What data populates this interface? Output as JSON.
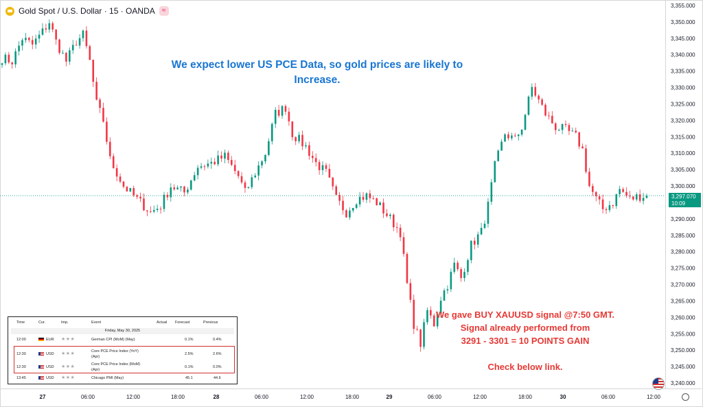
{
  "header": {
    "symbol_title": "Gold Spot / U.S. Dollar · 15 · OANDA",
    "badge": "≈"
  },
  "annotations": {
    "pce_line1": "We expect lower US PCE Data, so gold prices are likely to",
    "pce_line2": "Increase.",
    "signal_line1": "We gave BUY XAUUSD signal @7:50 GMT.",
    "signal_line2": "Signal already performed from",
    "signal_line3": "3291 - 3301 = 10 POINTS GAIN",
    "signal_line4": "Check below link."
  },
  "last_price": {
    "value": "3,297.070",
    "countdown": "10:09"
  },
  "colors": {
    "up": "#089981",
    "down": "#f23645",
    "current_line": "#089981",
    "note_blue": "#1976d2",
    "note_red": "#e53935"
  },
  "calendar": {
    "headers": [
      "Time",
      "Cur.",
      "Imp.",
      "Event",
      "Actual",
      "Forecast",
      "Previous"
    ],
    "date": "Friday, May 30, 2025",
    "rows": [
      {
        "time": "12:00",
        "cur": "EUR",
        "event": "German CPI (MoM) (May)",
        "event2": "",
        "actual": "",
        "forecast": "0.1%",
        "previous": "0.4%"
      },
      {
        "time": "12:30",
        "cur": "USD",
        "event": "Core PCE Price Index (YoY)",
        "event2": "(Apr)",
        "actual": "",
        "forecast": "2.5%",
        "previous": "2.6%"
      },
      {
        "time": "12:30",
        "cur": "USD",
        "event": "Core PCE Price Index (MoM)",
        "event2": "(Apr)",
        "actual": "",
        "forecast": "0.1%",
        "previous": "0.0%"
      },
      {
        "time": "13:45",
        "cur": "USD",
        "event": "Chicago PMI (May)",
        "event2": "",
        "actual": "",
        "forecast": "45.1",
        "previous": "44.6"
      }
    ]
  },
  "chart_data": {
    "type": "candlestick",
    "instrument": "Gold Spot / U.S. Dollar",
    "timeframe": "15",
    "ylim": [
      3237,
      3356
    ],
    "y_ticks": [
      "3,355.000",
      "3,350.000",
      "3,345.000",
      "3,340.000",
      "3,335.000",
      "3,330.000",
      "3,325.000",
      "3,320.000",
      "3,315.000",
      "3,310.000",
      "3,305.000",
      "3,300.000",
      "3,295.000",
      "3,290.000",
      "3,285.000",
      "3,280.000",
      "3,275.000",
      "3,270.000",
      "3,265.000",
      "3,260.000",
      "3,255.000",
      "3,250.000",
      "3,245.000",
      "3,240.000"
    ],
    "x_labels": [
      "27",
      "06:00",
      "12:00",
      "18:00",
      "28",
      "06:00",
      "12:00",
      "18:00",
      "29",
      "06:00",
      "12:00",
      "18:00",
      "30",
      "06:00",
      "12:00"
    ],
    "x_bold": [
      true,
      false,
      false,
      false,
      true,
      false,
      false,
      false,
      true,
      false,
      false,
      false,
      true,
      false,
      false
    ],
    "current_price": 3297.07,
    "anchors": [
      [
        0,
        3339
      ],
      [
        3,
        3338
      ],
      [
        6,
        3345
      ],
      [
        9,
        3343
      ],
      [
        12,
        3347
      ],
      [
        14,
        3350
      ],
      [
        16,
        3344
      ],
      [
        19,
        3338
      ],
      [
        22,
        3344
      ],
      [
        24,
        3346
      ],
      [
        26,
        3338
      ],
      [
        28,
        3325
      ],
      [
        30,
        3320
      ],
      [
        32,
        3308
      ],
      [
        36,
        3300
      ],
      [
        40,
        3296
      ],
      [
        44,
        3292
      ],
      [
        47,
        3294
      ],
      [
        50,
        3300
      ],
      [
        54,
        3298
      ],
      [
        56,
        3302
      ],
      [
        58,
        3306
      ],
      [
        62,
        3307
      ],
      [
        66,
        3309
      ],
      [
        70,
        3303
      ],
      [
        72,
        3298
      ],
      [
        74,
        3302
      ],
      [
        78,
        3310
      ],
      [
        81,
        3322
      ],
      [
        84,
        3324
      ],
      [
        86,
        3316
      ],
      [
        90,
        3312
      ],
      [
        93,
        3307
      ],
      [
        96,
        3304
      ],
      [
        99,
        3296
      ],
      [
        102,
        3292
      ],
      [
        105,
        3296
      ],
      [
        108,
        3297
      ],
      [
        111,
        3295
      ],
      [
        115,
        3290
      ],
      [
        118,
        3286
      ],
      [
        120,
        3270
      ],
      [
        122,
        3258
      ],
      [
        124,
        3252
      ],
      [
        126,
        3262
      ],
      [
        128,
        3258
      ],
      [
        130,
        3266
      ],
      [
        132,
        3270
      ],
      [
        134,
        3276
      ],
      [
        136,
        3272
      ],
      [
        139,
        3282
      ],
      [
        142,
        3286
      ],
      [
        144,
        3294
      ],
      [
        146,
        3306
      ],
      [
        149,
        3316
      ],
      [
        152,
        3314
      ],
      [
        154,
        3318
      ],
      [
        157,
        3330
      ],
      [
        159,
        3326
      ],
      [
        161,
        3322
      ],
      [
        164,
        3318
      ],
      [
        167,
        3317
      ],
      [
        170,
        3315
      ],
      [
        172,
        3311
      ],
      [
        174,
        3300
      ],
      [
        176,
        3296
      ],
      [
        178,
        3293
      ],
      [
        181,
        3295
      ],
      [
        183,
        3299
      ],
      [
        186,
        3296
      ],
      [
        189,
        3297
      ],
      [
        191,
        3297.07
      ]
    ]
  }
}
